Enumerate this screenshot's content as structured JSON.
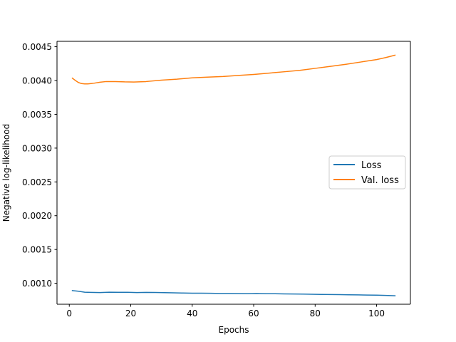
{
  "chart_data": {
    "type": "line",
    "xlabel": "Epochs",
    "ylabel": "Negative log-likelihood",
    "xlim": [
      -4,
      111
    ],
    "ylim": [
      0.00069,
      0.00458
    ],
    "xticks": [
      0,
      20,
      40,
      60,
      80,
      100
    ],
    "xtick_labels": [
      "0",
      "20",
      "40",
      "60",
      "80",
      "100"
    ],
    "yticks": [
      0.001,
      0.0015,
      0.002,
      0.0025,
      0.003,
      0.0035,
      0.004,
      0.0045
    ],
    "ytick_labels": [
      "0.0010",
      "0.0015",
      "0.0020",
      "0.0025",
      "0.0030",
      "0.0035",
      "0.0040",
      "0.0045"
    ],
    "grid": false,
    "legend_position": "center-right",
    "series": [
      {
        "name": "Loss",
        "color": "#1f77b4",
        "x": [
          1,
          3,
          5,
          7,
          10,
          13,
          16,
          19,
          22,
          25,
          28,
          31,
          34,
          37,
          40,
          43,
          46,
          49,
          52,
          55,
          58,
          61,
          64,
          67,
          70,
          73,
          76,
          79,
          82,
          85,
          88,
          91,
          94,
          97,
          100,
          103,
          106
        ],
        "values": [
          0.000892,
          0.000882,
          0.000868,
          0.000865,
          0.000863,
          0.000868,
          0.000866,
          0.000867,
          0.000862,
          0.000865,
          0.000864,
          0.000861,
          0.000858,
          0.000856,
          0.000854,
          0.000853,
          0.000852,
          0.00085,
          0.000849,
          0.000848,
          0.000847,
          0.000849,
          0.000846,
          0.000845,
          0.000843,
          0.000841,
          0.00084,
          0.000838,
          0.000835,
          0.000834,
          0.000832,
          0.00083,
          0.000828,
          0.000826,
          0.000824,
          0.00082,
          0.000815
        ]
      },
      {
        "name": "Val. loss",
        "color": "#ff7f0e",
        "x": [
          1,
          2,
          3,
          4,
          5,
          6,
          8,
          10,
          12,
          15,
          18,
          21,
          25,
          30,
          35,
          40,
          45,
          50,
          55,
          60,
          65,
          70,
          75,
          80,
          85,
          90,
          95,
          100,
          103,
          106
        ],
        "values": [
          0.004035,
          0.004,
          0.00397,
          0.003955,
          0.00395,
          0.00395,
          0.00396,
          0.003975,
          0.003985,
          0.003985,
          0.00398,
          0.003978,
          0.003985,
          0.004005,
          0.00402,
          0.00404,
          0.00405,
          0.00406,
          0.004075,
          0.00409,
          0.00411,
          0.00413,
          0.00415,
          0.00418,
          0.00421,
          0.00424,
          0.004275,
          0.00431,
          0.00434,
          0.004375
        ]
      }
    ]
  }
}
